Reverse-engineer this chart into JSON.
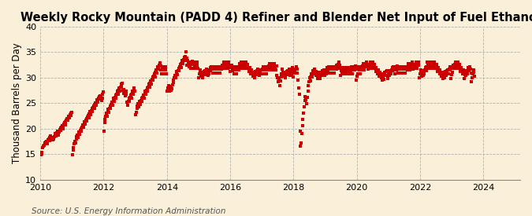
{
  "title": "Weekly Rocky Mountain (PADD 4) Refiner and Blender Net Input of Fuel Ethanol",
  "ylabel": "Thousand Barrels per Day",
  "source": "Source: U.S. Energy Information Administration",
  "background_color": "#faefd9",
  "plot_bg_color": "#faefd9",
  "marker_color": "#cc0000",
  "grid_color": "#b0b0b0",
  "ylim": [
    10,
    40
  ],
  "yticks": [
    10,
    15,
    20,
    25,
    30,
    35,
    40
  ],
  "title_fontsize": 10.5,
  "ylabel_fontsize": 8.5,
  "source_fontsize": 7.5,
  "marker_size": 5,
  "data": [
    14.8,
    15.1,
    15.3,
    16.2,
    16.5,
    16.8,
    17.2,
    17.0,
    17.3,
    17.5,
    17.1,
    17.4,
    17.8,
    18.0,
    17.6,
    18.2,
    18.5,
    18.1,
    17.9,
    18.3,
    17.8,
    18.0,
    18.4,
    18.7,
    19.0,
    18.5,
    19.2,
    19.5,
    19.1,
    18.8,
    19.4,
    19.8,
    20.1,
    19.7,
    20.3,
    20.6,
    20.0,
    20.5,
    20.9,
    21.2,
    20.8,
    21.4,
    21.7,
    22.0,
    21.6,
    22.2,
    22.5,
    22.1,
    22.8,
    23.0,
    22.6,
    23.2,
    14.9,
    15.8,
    16.3,
    17.1,
    17.5,
    17.2,
    18.0,
    18.4,
    18.8,
    18.3,
    19.0,
    19.4,
    18.9,
    19.6,
    20.0,
    19.5,
    20.3,
    20.7,
    20.2,
    21.0,
    21.4,
    20.9,
    21.6,
    22.0,
    21.5,
    22.2,
    22.6,
    22.1,
    22.9,
    23.3,
    22.8,
    23.5,
    23.9,
    23.4,
    24.1,
    24.5,
    24.0,
    24.7,
    25.1,
    24.6,
    25.3,
    25.7,
    25.2,
    25.9,
    26.3,
    25.8,
    26.5,
    26.1,
    25.5,
    26.0,
    26.8,
    27.2,
    19.5,
    21.2,
    21.8,
    22.4,
    23.0,
    22.5,
    23.3,
    23.8,
    23.2,
    24.0,
    24.5,
    23.9,
    24.7,
    25.2,
    24.6,
    25.4,
    25.9,
    25.3,
    26.1,
    26.6,
    26.0,
    26.8,
    27.3,
    26.7,
    27.5,
    28.0,
    27.4,
    28.2,
    28.7,
    28.1,
    28.9,
    27.5,
    26.9,
    27.7,
    27.2,
    26.5,
    27.3,
    26.8,
    25.2,
    24.6,
    25.4,
    25.9,
    25.3,
    26.1,
    26.6,
    26.0,
    26.8,
    27.3,
    26.7,
    27.5,
    28.0,
    27.4,
    22.8,
    23.2,
    24.0,
    24.5,
    24.9,
    24.2,
    25.0,
    25.4,
    24.7,
    25.5,
    26.0,
    25.3,
    26.1,
    26.6,
    26.0,
    26.8,
    27.3,
    26.7,
    27.5,
    28.0,
    27.4,
    28.2,
    28.7,
    28.1,
    28.9,
    29.4,
    28.8,
    29.6,
    30.1,
    29.5,
    30.3,
    30.8,
    30.2,
    31.0,
    31.5,
    30.9,
    31.7,
    32.2,
    31.6,
    32.4,
    32.9,
    32.3,
    31.5,
    30.8,
    31.6,
    32.1,
    31.5,
    30.8,
    31.6,
    32.1,
    31.5,
    30.8,
    27.3,
    28.0,
    28.5,
    28.0,
    27.3,
    28.1,
    27.5,
    28.3,
    27.8,
    28.6,
    29.1,
    29.5,
    30.0,
    30.5,
    29.9,
    30.7,
    31.2,
    30.6,
    31.4,
    31.9,
    31.3,
    32.1,
    32.6,
    32.0,
    32.8,
    33.3,
    32.7,
    33.5,
    34.0,
    33.4,
    34.2,
    35.0,
    33.8,
    32.5,
    33.3,
    32.8,
    32.2,
    33.0,
    32.5,
    31.9,
    32.7,
    33.2,
    32.6,
    31.8,
    32.6,
    33.1,
    32.5,
    31.8,
    32.6,
    33.1,
    32.5,
    31.8,
    30.0,
    30.8,
    31.5,
    31.0,
    30.3,
    31.1,
    30.5,
    29.9,
    30.7,
    31.2,
    30.6,
    31.4,
    30.8,
    31.6,
    31.1,
    30.5,
    31.3,
    30.7,
    31.5,
    32.0,
    31.4,
    32.2,
    31.6,
    30.9,
    31.7,
    32.2,
    31.6,
    30.9,
    31.7,
    32.2,
    31.6,
    30.9,
    31.7,
    32.2,
    31.6,
    30.9,
    31.7,
    32.2,
    31.6,
    32.4,
    31.8,
    32.6,
    33.1,
    32.5,
    31.8,
    32.6,
    33.1,
    32.5,
    31.8,
    32.6,
    33.1,
    32.5,
    31.2,
    32.0,
    32.5,
    32.0,
    31.3,
    32.1,
    31.5,
    30.8,
    31.6,
    32.1,
    31.5,
    30.8,
    31.6,
    32.1,
    31.5,
    32.3,
    32.8,
    32.2,
    33.0,
    32.4,
    31.8,
    32.6,
    33.1,
    32.5,
    31.8,
    32.6,
    33.1,
    32.5,
    31.8,
    32.6,
    31.9,
    31.2,
    32.0,
    31.4,
    30.7,
    31.5,
    31.0,
    30.3,
    31.1,
    30.5,
    29.9,
    30.7,
    31.2,
    30.6,
    31.4,
    30.8,
    31.6,
    31.1,
    30.5,
    31.3,
    30.7,
    31.5,
    30.8,
    31.6,
    32.1,
    31.5,
    30.8,
    31.6,
    32.1,
    31.5,
    30.8,
    31.6,
    32.1,
    31.5,
    32.3,
    32.8,
    32.2,
    31.5,
    32.3,
    32.8,
    32.2,
    31.5,
    32.3,
    32.8,
    32.2,
    31.5,
    32.3,
    30.5,
    30.0,
    29.2,
    30.0,
    29.3,
    28.5,
    29.3,
    30.1,
    30.8,
    31.6,
    31.0,
    30.3,
    31.1,
    30.5,
    29.9,
    30.7,
    31.2,
    30.6,
    31.4,
    30.8,
    31.6,
    31.1,
    30.5,
    31.3,
    30.7,
    31.5,
    32.0,
    30.2,
    31.0,
    31.5,
    30.9,
    31.7,
    32.2,
    31.6,
    30.9,
    29.5,
    28.0,
    26.8,
    19.5,
    16.5,
    17.2,
    19.0,
    20.5,
    21.8,
    23.0,
    24.2,
    25.5,
    26.3,
    25.6,
    24.9,
    26.1,
    27.3,
    28.5,
    29.2,
    30.0,
    29.4,
    30.2,
    30.7,
    30.1,
    30.9,
    31.4,
    30.8,
    31.6,
    31.0,
    30.4,
    31.2,
    30.5,
    29.8,
    30.6,
    31.1,
    30.5,
    29.8,
    30.6,
    31.1,
    30.5,
    31.3,
    30.7,
    31.5,
    30.9,
    30.5,
    31.3,
    30.7,
    31.5,
    32.0,
    31.4,
    32.2,
    31.6,
    30.9,
    31.7,
    32.2,
    31.6,
    30.9,
    31.7,
    32.2,
    31.6,
    30.9,
    31.7,
    32.2,
    31.6,
    32.4,
    31.8,
    32.6,
    33.1,
    32.5,
    31.8,
    30.5,
    31.3,
    30.7,
    31.5,
    32.0,
    31.4,
    30.7,
    31.5,
    32.0,
    31.4,
    30.7,
    31.5,
    32.0,
    31.4,
    30.7,
    31.5,
    32.0,
    31.4,
    32.2,
    31.5,
    30.8,
    31.6,
    32.1,
    31.5,
    32.3,
    31.6,
    29.5,
    30.3,
    30.8,
    31.6,
    32.1,
    31.5,
    30.8,
    31.6,
    32.1,
    31.5,
    32.3,
    32.8,
    32.2,
    31.5,
    32.3,
    32.8,
    32.2,
    33.0,
    32.3,
    31.6,
    32.4,
    31.8,
    32.6,
    33.1,
    32.5,
    31.8,
    32.6,
    33.1,
    32.5,
    31.8,
    32.6,
    31.9,
    31.2,
    32.0,
    31.4,
    30.7,
    31.5,
    31.0,
    30.3,
    31.1,
    30.5,
    29.9,
    30.7,
    29.5,
    30.3,
    29.7,
    30.5,
    31.0,
    30.4,
    31.2,
    30.5,
    31.3,
    29.8,
    30.6,
    31.1,
    30.5,
    31.3,
    30.7,
    31.5,
    32.0,
    31.4,
    32.2,
    31.5,
    30.8,
    31.6,
    32.1,
    31.5,
    32.3,
    31.6,
    30.9,
    31.7,
    32.2,
    31.6,
    30.9,
    31.7,
    32.2,
    31.6,
    30.9,
    31.7,
    32.2,
    31.6,
    30.9,
    31.7,
    32.2,
    31.5,
    32.3,
    32.8,
    32.2,
    31.5,
    32.3,
    32.8,
    32.2,
    33.0,
    32.3,
    31.6,
    32.4,
    31.8,
    32.6,
    33.1,
    32.5,
    31.8,
    32.6,
    33.1,
    32.5,
    30.0,
    30.8,
    31.5,
    31.0,
    30.3,
    31.1,
    30.5,
    31.3,
    30.7,
    31.5,
    32.0,
    31.4,
    32.2,
    33.0,
    32.4,
    31.8,
    32.6,
    33.1,
    32.5,
    31.8,
    32.6,
    33.1,
    32.5,
    31.8,
    32.6,
    33.1,
    32.5,
    31.8,
    32.6,
    31.9,
    31.2,
    32.0,
    31.4,
    30.7,
    31.5,
    31.0,
    30.3,
    31.1,
    30.5,
    29.8,
    30.6,
    29.9,
    30.7,
    31.2,
    30.5,
    31.3,
    30.7,
    31.5,
    30.8,
    31.6,
    32.1,
    31.5,
    29.8,
    30.6,
    31.1,
    31.9,
    32.4,
    31.8,
    32.6,
    33.1,
    32.5,
    31.8,
    32.6,
    33.1,
    32.5,
    31.8,
    32.6,
    31.9,
    31.2,
    32.0,
    31.4,
    30.7,
    31.5,
    31.0,
    29.8,
    30.6,
    31.1,
    30.5,
    31.3,
    30.7,
    31.5,
    32.0,
    31.4,
    32.2,
    31.6,
    30.9,
    29.2,
    30.0,
    30.8,
    31.5,
    31.0,
    30.3
  ]
}
